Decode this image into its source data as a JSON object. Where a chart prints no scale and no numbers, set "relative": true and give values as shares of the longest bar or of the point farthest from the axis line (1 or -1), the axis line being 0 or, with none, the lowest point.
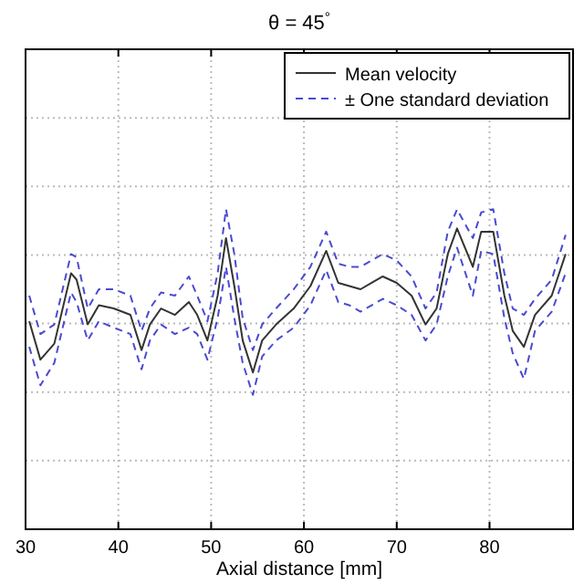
{
  "chart_data": {
    "type": "line",
    "title": "θ = 45$^{°}$",
    "xlabel": "Axial distance [mm]",
    "relative": true,
    "grid": true,
    "legend": "top right",
    "xlim": [
      30,
      89
    ],
    "xticks": [
      30,
      40,
      50,
      60,
      70,
      80
    ],
    "x": [
      30.4,
      31.6,
      33.1,
      34.9,
      35.5,
      36.7,
      37.9,
      39.5,
      41.3,
      42.5,
      43.4,
      44.6,
      46.1,
      47.6,
      48.5,
      49.6,
      50.7,
      51.6,
      52.5,
      53.4,
      54.5,
      55.5,
      57.0,
      58.9,
      60.7,
      62.4,
      63.7,
      64.9,
      66.1,
      67.3,
      68.5,
      70.0,
      71.6,
      73.1,
      74.3,
      75.5,
      76.5,
      78.2,
      79.1,
      80.4,
      81.6,
      82.5,
      83.7,
      84.9,
      86.7,
      88.2
    ],
    "series": [
      {
        "name": "Mean velocity",
        "color": "#333333",
        "line_style": "solid",
        "values": [
          0.65,
          0.53,
          0.58,
          0.8,
          0.78,
          0.64,
          0.7,
          0.69,
          0.67,
          0.56,
          0.64,
          0.69,
          0.67,
          0.71,
          0.67,
          0.59,
          0.73,
          0.91,
          0.76,
          0.59,
          0.49,
          0.59,
          0.64,
          0.69,
          0.76,
          0.87,
          0.77,
          0.76,
          0.75,
          0.77,
          0.79,
          0.77,
          0.73,
          0.64,
          0.69,
          0.86,
          0.94,
          0.82,
          0.93,
          0.93,
          0.73,
          0.62,
          0.57,
          0.67,
          0.73,
          0.86
        ]
      },
      {
        "name": "± One standard deviation",
        "color": "#4a4ad0",
        "line_style": "dashed",
        "values": [
          0.73,
          0.61,
          0.64,
          0.86,
          0.85,
          0.69,
          0.75,
          0.75,
          0.73,
          0.62,
          0.69,
          0.74,
          0.73,
          0.79,
          0.73,
          0.65,
          0.8,
          1.0,
          0.86,
          0.66,
          0.56,
          0.64,
          0.69,
          0.75,
          0.82,
          0.93,
          0.83,
          0.82,
          0.82,
          0.84,
          0.86,
          0.84,
          0.79,
          0.69,
          0.74,
          0.93,
          1.0,
          0.91,
          0.99,
          1.0,
          0.8,
          0.69,
          0.67,
          0.72,
          0.78,
          0.92
        ]
      },
      {
        "color": "#4a4ad0",
        "line_style": "dashed",
        "values": [
          0.57,
          0.45,
          0.52,
          0.74,
          0.71,
          0.59,
          0.65,
          0.63,
          0.61,
          0.5,
          0.59,
          0.64,
          0.61,
          0.63,
          0.61,
          0.53,
          0.66,
          0.82,
          0.66,
          0.52,
          0.42,
          0.54,
          0.59,
          0.63,
          0.7,
          0.81,
          0.71,
          0.7,
          0.68,
          0.7,
          0.72,
          0.7,
          0.67,
          0.59,
          0.64,
          0.79,
          0.88,
          0.73,
          0.87,
          0.86,
          0.66,
          0.55,
          0.47,
          0.62,
          0.68,
          0.8
        ]
      }
    ]
  }
}
